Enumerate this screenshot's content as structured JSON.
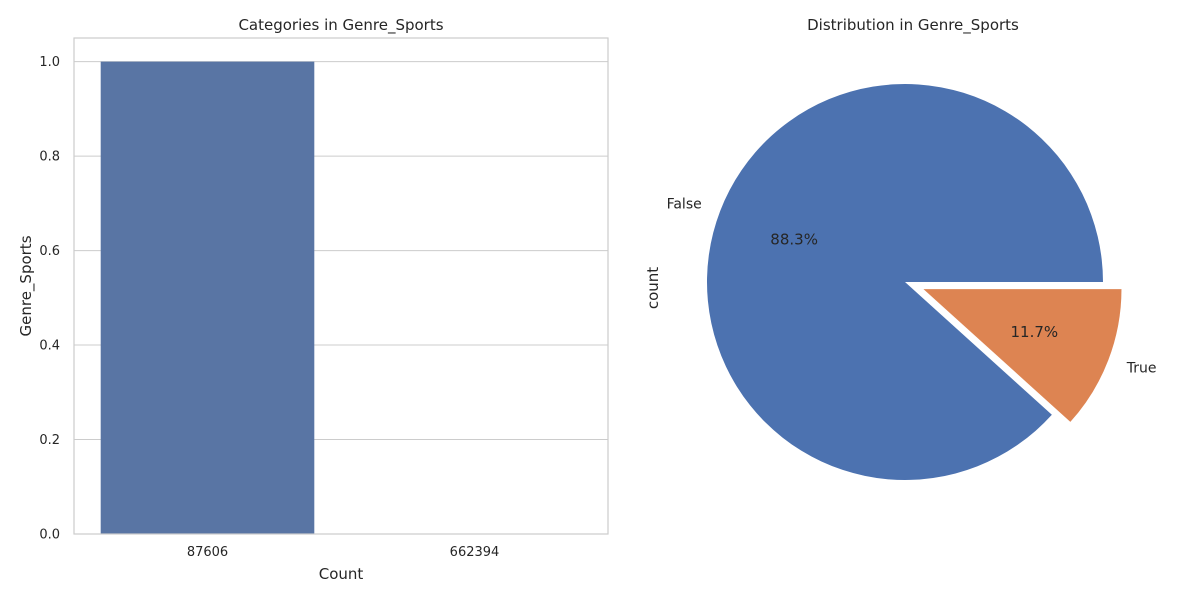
{
  "chart_data": [
    {
      "type": "bar",
      "title": "Categories in Genre_Sports",
      "xlabel": "Count",
      "ylabel": "Genre_Sports",
      "categories": [
        "87606",
        "662394"
      ],
      "values": [
        1.0,
        0.0
      ],
      "ylim": [
        0,
        1.05
      ],
      "yticks": [
        "0.0",
        "0.2",
        "0.4",
        "0.6",
        "0.8",
        "1.0"
      ],
      "grid": "horizontal",
      "color": "#5975a4"
    },
    {
      "type": "pie",
      "title": "Distribution in Genre_Sports",
      "ylabel": "count",
      "labels": [
        "False",
        "True"
      ],
      "values": [
        88.3,
        11.7
      ],
      "percent_labels": [
        "88.3%",
        "11.7%"
      ],
      "explode": [
        0,
        0.1
      ],
      "colors": [
        "#4c72b0",
        "#dd8452"
      ]
    }
  ]
}
